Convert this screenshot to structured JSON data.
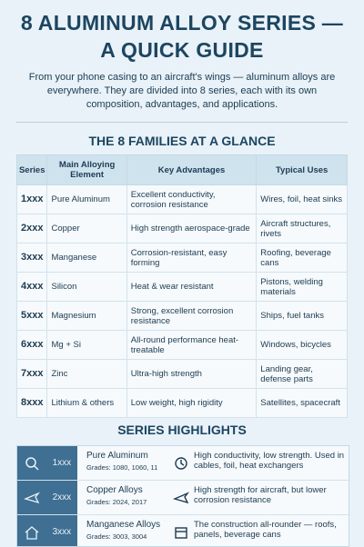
{
  "header": {
    "title": "8 ALUMINUM ALLOY SERIES — A QUICK GUIDE",
    "intro": "From your phone casing to an aircraft's wings — aluminum alloys are everywhere. They are divided into 8 series, each with its own composition, advantages, and applications."
  },
  "table": {
    "heading": "THE 8 FAMILIES AT A GLANCE",
    "columns": [
      "Series",
      "Main Alloying Element",
      "Key Advantages",
      "Typical Uses"
    ],
    "rows": [
      [
        "1xxx",
        "Pure Aluminum",
        "Excellent conductivity, corrosion resistance",
        "Wires, foil, heat sinks"
      ],
      [
        "2xxx",
        "Copper",
        "High strength aerospace-grade",
        "Aircraft structures, rivets"
      ],
      [
        "3xxx",
        "Manganese",
        "Corrosion-resistant, easy forming",
        "Roofing, beverage cans"
      ],
      [
        "4xxx",
        "Silicon",
        "Heat & wear resistant",
        "Pistons, welding materials"
      ],
      [
        "5xxx",
        "Magnesium",
        "Strong, excellent corrosion resistance",
        "Ships, fuel tanks"
      ],
      [
        "6xxx",
        "Mg + Si",
        "All-round performance heat-treatable",
        "Windows, bicycles"
      ],
      [
        "7xxx",
        "Zinc",
        "Ultra-high strength",
        "Landing gear, defense parts"
      ],
      [
        "8xxx",
        "Lithium & others",
        "Low weight, high rigidity",
        "Satellites, spacecraft"
      ]
    ]
  },
  "highlights": {
    "heading": "SERIES HIGHLIGHTS",
    "items": [
      {
        "code": "1xxx",
        "name": "Pure Aluminum",
        "grades": "Grades: 1080, 1060, 11",
        "description": "High conductivity, low strength. Used in cables, foil, heat exchangers"
      },
      {
        "code": "2xxx",
        "name": "Copper Alloys",
        "grades": "Grades: 2024, 2017",
        "description": "High strength for aircraft, but lower corrosion resistance"
      },
      {
        "code": "3xxx",
        "name": "Manganese Alloys",
        "grades": "Grades: 3003, 3004",
        "description": "The construction all-rounder — roofs, panels, beverage cans"
      }
    ]
  }
}
